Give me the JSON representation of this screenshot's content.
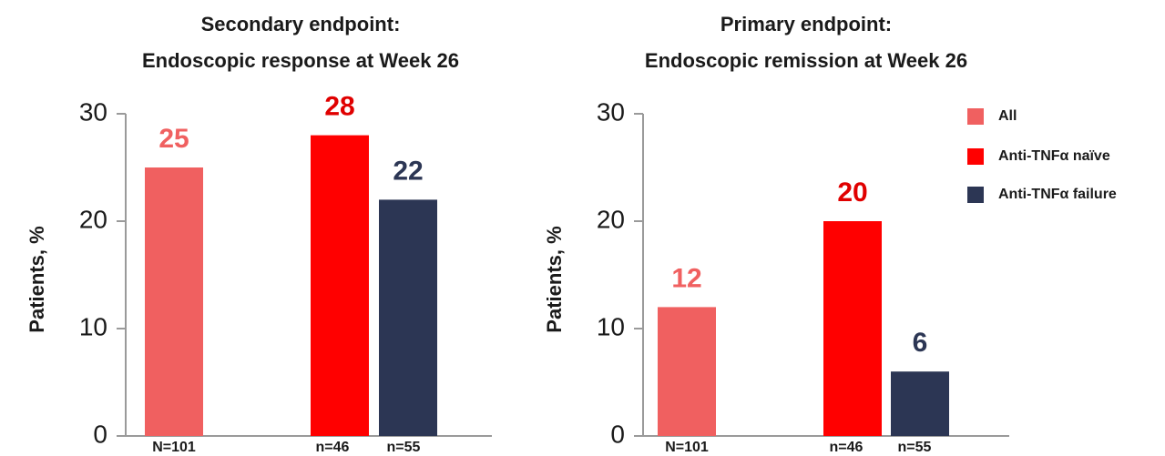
{
  "chart_data": [
    {
      "type": "bar",
      "title": [
        "Secondary endpoint:",
        "Endoscopic response at Week 26"
      ],
      "ylabel": "Patients, %",
      "ylim": [
        0,
        30
      ],
      "yticks": [
        0,
        10,
        20,
        30
      ],
      "categories": [
        "All",
        "Anti-TNFα naïve",
        "Anti-TNFα failure"
      ],
      "n_labels": [
        "N=101",
        "n=46",
        "n=55"
      ],
      "values": [
        25,
        28,
        22
      ]
    },
    {
      "type": "bar",
      "title": [
        "Primary endpoint:",
        "Endoscopic remission at Week 26"
      ],
      "ylabel": "Patients, %",
      "ylim": [
        0,
        30
      ],
      "yticks": [
        0,
        10,
        20,
        30
      ],
      "categories": [
        "All",
        "Anti-TNFα naïve",
        "Anti-TNFα failure"
      ],
      "n_labels": [
        "N=101",
        "n=46",
        "n=55"
      ],
      "values": [
        12,
        20,
        6
      ]
    }
  ],
  "legend": {
    "position": "top-right",
    "entries": [
      "All",
      "Anti-TNFα naïve",
      "Anti-TNFα failure"
    ]
  },
  "colors": {
    "all": "#f06060",
    "naive": "#ff0000",
    "failure": "#2c3654",
    "axis": "#9a9a9a",
    "label_all": "#f06060",
    "label_naive": "#e00000",
    "label_failure": "#2c3654"
  }
}
